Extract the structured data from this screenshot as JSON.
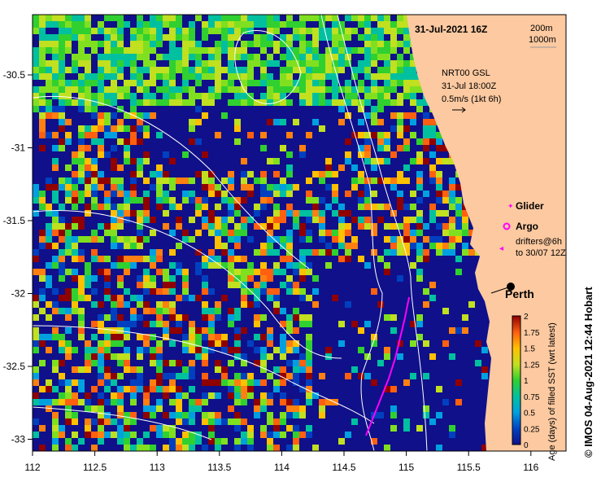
{
  "header": {
    "date_label": "31-Jul-2021 16Z",
    "isobath_200": "200m",
    "isobath_1000": "1000m"
  },
  "current_note": {
    "line1": "NRT00 GSL",
    "line2": "31-Jul 18:00Z",
    "line3": "0.5m/s (1kt 6h)"
  },
  "legend": {
    "glider": "Glider",
    "argo": "Argo",
    "drifters_line1": "drifters@6h",
    "drifters_line2": "to 30/07 12Z"
  },
  "place": {
    "city": "Perth"
  },
  "colorbar": {
    "title": "Age (days) of filled SST (wrt latest)",
    "ticks": [
      "0",
      "0.25",
      "0.5",
      "0.75",
      "1",
      "1.25",
      "1.5",
      "1.75",
      "2"
    ]
  },
  "credit": "© IMOS 04-Aug-2021 12:44 Hobart",
  "axes": {
    "x_ticks": [
      "112",
      "112.5",
      "113",
      "113.5",
      "114",
      "114.5",
      "115",
      "115.5",
      "116"
    ],
    "y_ticks": [
      "-30.5",
      "-31",
      "-31.5",
      "-32",
      "-32.5",
      "-33"
    ]
  },
  "colors": {
    "land": "#fcc9a0",
    "deep_blue": "#10108a",
    "isobath": "#ffffff",
    "glider_track": "#ff00ff"
  }
}
